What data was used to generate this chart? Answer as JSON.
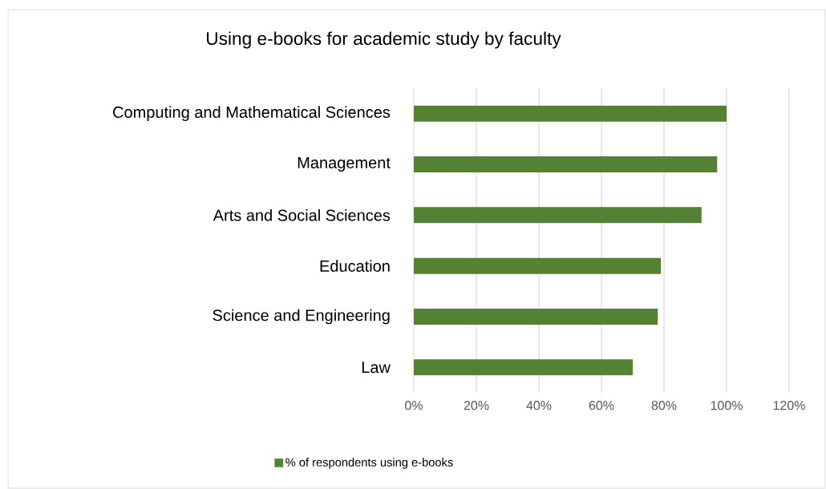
{
  "chart_data": {
    "type": "bar",
    "orientation": "horizontal",
    "title": "Using e-books for academic study by faculty",
    "categories": [
      "Computing and Mathematical Sciences",
      "Management",
      "Arts and Social Sciences",
      "Education",
      "Science and Engineering",
      "Law"
    ],
    "series": [
      {
        "name": "% of respondents using e-books",
        "color": "#548235",
        "values": [
          100,
          97,
          92,
          79,
          78,
          70
        ]
      }
    ],
    "xlim": [
      0,
      120
    ],
    "xticks": [
      {
        "value": 0,
        "label": "0%"
      },
      {
        "value": 20,
        "label": "20%"
      },
      {
        "value": 40,
        "label": "40%"
      },
      {
        "value": 60,
        "label": "60%"
      },
      {
        "value": 80,
        "label": "80%"
      },
      {
        "value": 100,
        "label": "100%"
      },
      {
        "value": 120,
        "label": "120%"
      }
    ],
    "grid": "x",
    "legend": "bottom"
  }
}
